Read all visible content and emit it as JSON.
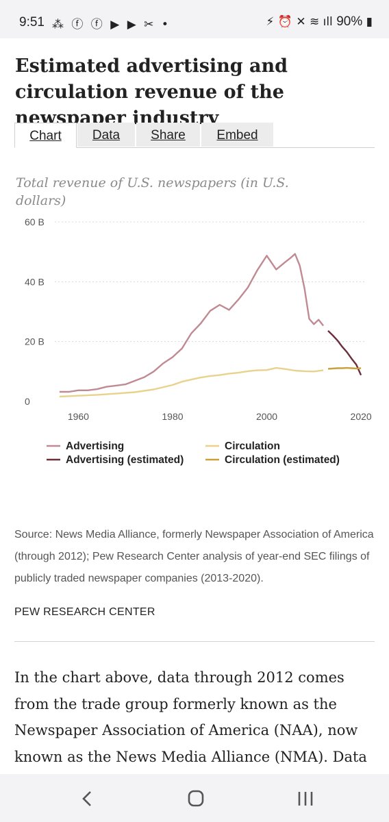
{
  "status_bar": {
    "time": "9:51",
    "left_icons": "⁂ ⓕ ⓕ ▶ ▶ ✂ •",
    "right_icons": "⚡ ⏰ ✕ ≋ ıll",
    "battery": "90%"
  },
  "article": {
    "title": "Estimated advertising and circulation revenue of the newspaper industry",
    "tabs": [
      {
        "label": "Chart",
        "active": true
      },
      {
        "label": "Data",
        "active": false
      },
      {
        "label": "Share",
        "active": false
      },
      {
        "label": "Embed",
        "active": false
      }
    ],
    "chart_title": "Total revenue of U.S. newspapers (in U.S. dollars)",
    "source": "Source: News Media Alliance, formerly Newspaper Association of America (through 2012); Pew Research Center analysis of year-end SEC filings of publicly traded newspaper companies (2013-2020).",
    "credit": "PEW RESEARCH CENTER",
    "body": "In the chart above, data through 2012 comes from the trade group formerly known as the Newspaper Association of America (NAA), now known as the News Media Alliance (NMA). Data"
  },
  "chart_data": {
    "type": "line",
    "title": "Total revenue of U.S. newspapers (in U.S. dollars)",
    "xlabel": "",
    "ylabel": "",
    "x_ticks": [
      "1960",
      "1980",
      "2000",
      "2020"
    ],
    "y_ticks": [
      "0",
      "20 B",
      "40 B",
      "60 B"
    ],
    "xlim": [
      1955,
      2021
    ],
    "ylim": [
      0,
      60
    ],
    "grid": true,
    "legend_position": "bottom",
    "series": [
      {
        "name": "Advertising",
        "color": "#c08a93",
        "x": [
          1956,
          1958,
          1960,
          1962,
          1964,
          1966,
          1968,
          1970,
          1972,
          1974,
          1976,
          1978,
          1980,
          1982,
          1984,
          1986,
          1988,
          1990,
          1992,
          1994,
          1996,
          1998,
          2000,
          2002,
          2004,
          2005,
          2006,
          2007,
          2008,
          2009,
          2010,
          2011,
          2012
        ],
        "y": [
          3.2,
          3.2,
          3.7,
          3.7,
          4.1,
          4.9,
          5.3,
          5.7,
          6.9,
          8.1,
          10.0,
          12.7,
          14.8,
          17.7,
          22.8,
          26.1,
          30.3,
          32.3,
          30.6,
          34.1,
          38.1,
          43.9,
          48.7,
          44.1,
          46.7,
          47.9,
          49.3,
          45.4,
          37.8,
          27.6,
          25.8,
          27.3,
          25.3
        ]
      },
      {
        "name": "Advertising (estimated)",
        "color": "#6b2e3b",
        "x": [
          2013,
          2014,
          2015,
          2016,
          2017,
          2018,
          2019,
          2020
        ],
        "y": [
          23.6,
          22.1,
          20.4,
          18.3,
          16.5,
          14.3,
          12.3,
          8.8
        ]
      },
      {
        "name": "Circulation",
        "color": "#e8d28c",
        "x": [
          1956,
          1960,
          1964,
          1968,
          1972,
          1976,
          1980,
          1982,
          1984,
          1986,
          1988,
          1990,
          1992,
          1994,
          1996,
          1998,
          2000,
          2002,
          2004,
          2006,
          2008,
          2010,
          2012
        ],
        "y": [
          1.6,
          1.9,
          2.2,
          2.6,
          3.1,
          4.0,
          5.5,
          6.6,
          7.3,
          8.0,
          8.5,
          8.8,
          9.3,
          9.6,
          10.1,
          10.4,
          10.5,
          11.2,
          10.8,
          10.3,
          10.1,
          10.0,
          10.4
        ]
      },
      {
        "name": "Circulation (estimated)",
        "color": "#c9a13a",
        "x": [
          2013,
          2014,
          2015,
          2016,
          2017,
          2018,
          2019,
          2020
        ],
        "y": [
          10.9,
          11.0,
          11.1,
          11.1,
          11.2,
          11.1,
          11.0,
          11.1
        ]
      }
    ]
  }
}
